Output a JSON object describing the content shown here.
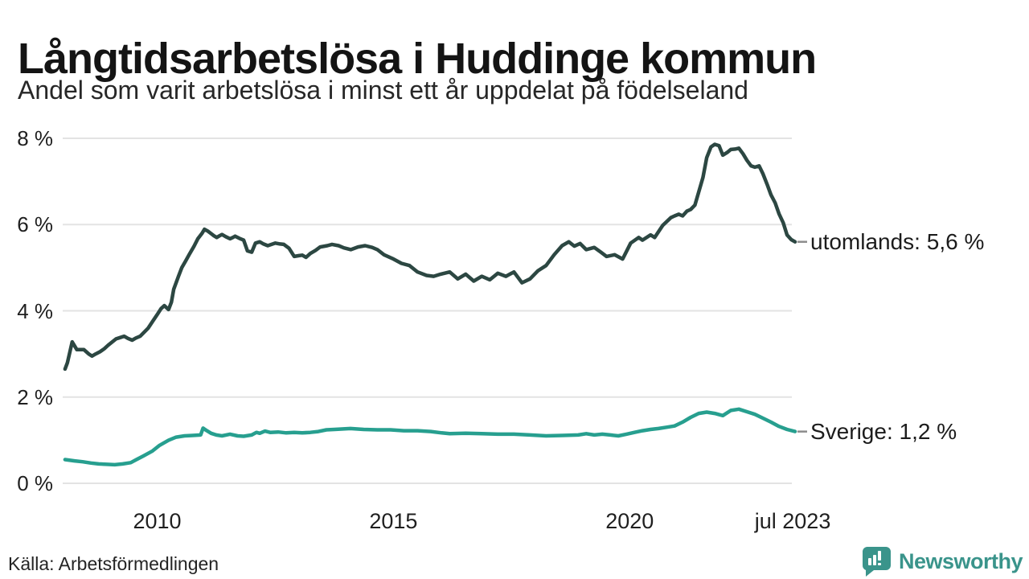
{
  "source_text": "Källa: Arbetsförmedlingen",
  "brand": {
    "name": "Newsworthy",
    "color": "#3a948b"
  },
  "chart_data": {
    "type": "line",
    "title": "Långtidsarbetslösa i Huddinge kommun",
    "subtitle": "Andel som varit arbetslösa i minst ett år uppdelat på födelseland",
    "xlabel": "",
    "ylabel": "",
    "xlim": [
      2008,
      2023.5
    ],
    "ylim": [
      0,
      8
    ],
    "grid": "horizontal",
    "grid_color": "#e3e3e3",
    "end_tick_color": "#8c8c8c",
    "legend_position": "line-end-labels",
    "y_ticks": [
      {
        "v": 8,
        "label": "8 %"
      },
      {
        "v": 6,
        "label": "6 %"
      },
      {
        "v": 4,
        "label": "4 %"
      },
      {
        "v": 2,
        "label": "2 %"
      },
      {
        "v": 0,
        "label": "0 %"
      }
    ],
    "x_ticks": [
      {
        "v": 2010,
        "label": "2010"
      },
      {
        "v": 2015,
        "label": "2015"
      },
      {
        "v": 2020,
        "label": "2020"
      },
      {
        "v": 2023.45,
        "label": "jul 2023"
      }
    ],
    "series": [
      {
        "name": "utomlands",
        "end_label": "utomlands: 5,6 %",
        "last_value_label": "5,6 %",
        "color": "#2c4742",
        "stroke_width": 4.5,
        "points": [
          [
            2008.05,
            2.65
          ],
          [
            2008.1,
            2.8
          ],
          [
            2008.2,
            3.28
          ],
          [
            2008.3,
            3.1
          ],
          [
            2008.45,
            3.1
          ],
          [
            2008.55,
            3.0
          ],
          [
            2008.62,
            2.95
          ],
          [
            2008.7,
            3.0
          ],
          [
            2008.79,
            3.05
          ],
          [
            2008.88,
            3.12
          ],
          [
            2008.96,
            3.2
          ],
          [
            2009.05,
            3.28
          ],
          [
            2009.13,
            3.35
          ],
          [
            2009.22,
            3.38
          ],
          [
            2009.3,
            3.41
          ],
          [
            2009.38,
            3.36
          ],
          [
            2009.47,
            3.32
          ],
          [
            2009.55,
            3.37
          ],
          [
            2009.64,
            3.41
          ],
          [
            2009.72,
            3.5
          ],
          [
            2009.81,
            3.6
          ],
          [
            2009.9,
            3.75
          ],
          [
            2010.0,
            3.91
          ],
          [
            2010.08,
            4.05
          ],
          [
            2010.15,
            4.12
          ],
          [
            2010.24,
            4.03
          ],
          [
            2010.3,
            4.2
          ],
          [
            2010.35,
            4.5
          ],
          [
            2010.45,
            4.8
          ],
          [
            2010.52,
            5.0
          ],
          [
            2010.6,
            5.15
          ],
          [
            2010.69,
            5.33
          ],
          [
            2010.78,
            5.5
          ],
          [
            2010.86,
            5.67
          ],
          [
            2010.95,
            5.8
          ],
          [
            2011.0,
            5.89
          ],
          [
            2011.07,
            5.85
          ],
          [
            2011.14,
            5.79
          ],
          [
            2011.2,
            5.74
          ],
          [
            2011.26,
            5.7
          ],
          [
            2011.32,
            5.74
          ],
          [
            2011.37,
            5.77
          ],
          [
            2011.45,
            5.72
          ],
          [
            2011.54,
            5.67
          ],
          [
            2011.6,
            5.7
          ],
          [
            2011.65,
            5.73
          ],
          [
            2011.74,
            5.68
          ],
          [
            2011.83,
            5.64
          ],
          [
            2011.91,
            5.39
          ],
          [
            2012.0,
            5.36
          ],
          [
            2012.08,
            5.57
          ],
          [
            2012.17,
            5.6
          ],
          [
            2012.25,
            5.55
          ],
          [
            2012.34,
            5.51
          ],
          [
            2012.42,
            5.54
          ],
          [
            2012.5,
            5.57
          ],
          [
            2012.6,
            5.55
          ],
          [
            2012.68,
            5.54
          ],
          [
            2012.79,
            5.45
          ],
          [
            2012.9,
            5.26
          ],
          [
            2013.0,
            5.28
          ],
          [
            2013.07,
            5.29
          ],
          [
            2013.15,
            5.24
          ],
          [
            2013.24,
            5.33
          ],
          [
            2013.35,
            5.4
          ],
          [
            2013.45,
            5.48
          ],
          [
            2013.6,
            5.51
          ],
          [
            2013.7,
            5.54
          ],
          [
            2013.84,
            5.51
          ],
          [
            2013.95,
            5.46
          ],
          [
            2014.1,
            5.42
          ],
          [
            2014.25,
            5.48
          ],
          [
            2014.4,
            5.51
          ],
          [
            2014.55,
            5.47
          ],
          [
            2014.66,
            5.42
          ],
          [
            2014.8,
            5.3
          ],
          [
            2015.0,
            5.2
          ],
          [
            2015.17,
            5.1
          ],
          [
            2015.34,
            5.05
          ],
          [
            2015.51,
            4.9
          ],
          [
            2015.7,
            4.82
          ],
          [
            2015.85,
            4.8
          ],
          [
            2016.0,
            4.85
          ],
          [
            2016.19,
            4.9
          ],
          [
            2016.36,
            4.74
          ],
          [
            2016.53,
            4.85
          ],
          [
            2016.7,
            4.69
          ],
          [
            2016.87,
            4.8
          ],
          [
            2017.04,
            4.72
          ],
          [
            2017.21,
            4.87
          ],
          [
            2017.38,
            4.8
          ],
          [
            2017.55,
            4.9
          ],
          [
            2017.72,
            4.65
          ],
          [
            2017.89,
            4.74
          ],
          [
            2018.06,
            4.93
          ],
          [
            2018.23,
            5.05
          ],
          [
            2018.4,
            5.3
          ],
          [
            2018.57,
            5.51
          ],
          [
            2018.71,
            5.6
          ],
          [
            2018.83,
            5.5
          ],
          [
            2018.95,
            5.56
          ],
          [
            2019.08,
            5.42
          ],
          [
            2019.25,
            5.47
          ],
          [
            2019.39,
            5.36
          ],
          [
            2019.51,
            5.26
          ],
          [
            2019.68,
            5.3
          ],
          [
            2019.85,
            5.2
          ],
          [
            2020.02,
            5.57
          ],
          [
            2020.19,
            5.7
          ],
          [
            2020.27,
            5.64
          ],
          [
            2020.44,
            5.76
          ],
          [
            2020.53,
            5.7
          ],
          [
            2020.7,
            5.98
          ],
          [
            2020.87,
            6.16
          ],
          [
            2020.95,
            6.2
          ],
          [
            2021.04,
            6.24
          ],
          [
            2021.12,
            6.2
          ],
          [
            2021.21,
            6.31
          ],
          [
            2021.29,
            6.35
          ],
          [
            2021.38,
            6.45
          ],
          [
            2021.46,
            6.75
          ],
          [
            2021.55,
            7.09
          ],
          [
            2021.63,
            7.55
          ],
          [
            2021.72,
            7.8
          ],
          [
            2021.8,
            7.86
          ],
          [
            2021.89,
            7.83
          ],
          [
            2021.97,
            7.61
          ],
          [
            2022.06,
            7.67
          ],
          [
            2022.14,
            7.74
          ],
          [
            2022.23,
            7.75
          ],
          [
            2022.31,
            7.77
          ],
          [
            2022.4,
            7.64
          ],
          [
            2022.48,
            7.49
          ],
          [
            2022.57,
            7.36
          ],
          [
            2022.65,
            7.33
          ],
          [
            2022.74,
            7.36
          ],
          [
            2022.82,
            7.18
          ],
          [
            2022.91,
            6.93
          ],
          [
            2022.99,
            6.69
          ],
          [
            2023.08,
            6.5
          ],
          [
            2023.16,
            6.25
          ],
          [
            2023.25,
            6.04
          ],
          [
            2023.33,
            5.76
          ],
          [
            2023.42,
            5.65
          ],
          [
            2023.5,
            5.6
          ]
        ]
      },
      {
        "name": "Sverige",
        "end_label": "Sverige: 1,2 %",
        "last_value_label": "1,2 %",
        "color": "#279f8f",
        "stroke_width": 4.5,
        "points": [
          [
            2008.05,
            0.55
          ],
          [
            2008.25,
            0.52
          ],
          [
            2008.42,
            0.5
          ],
          [
            2008.6,
            0.47
          ],
          [
            2008.76,
            0.45
          ],
          [
            2008.93,
            0.44
          ],
          [
            2009.1,
            0.43
          ],
          [
            2009.27,
            0.45
          ],
          [
            2009.44,
            0.48
          ],
          [
            2009.56,
            0.55
          ],
          [
            2009.7,
            0.63
          ],
          [
            2009.9,
            0.75
          ],
          [
            2010.05,
            0.88
          ],
          [
            2010.24,
            1.0
          ],
          [
            2010.4,
            1.07
          ],
          [
            2010.58,
            1.1
          ],
          [
            2010.75,
            1.11
          ],
          [
            2010.92,
            1.12
          ],
          [
            2010.97,
            1.28
          ],
          [
            2011.05,
            1.22
          ],
          [
            2011.14,
            1.16
          ],
          [
            2011.25,
            1.12
          ],
          [
            2011.37,
            1.1
          ],
          [
            2011.54,
            1.14
          ],
          [
            2011.7,
            1.1
          ],
          [
            2011.83,
            1.09
          ],
          [
            2012.0,
            1.12
          ],
          [
            2012.1,
            1.18
          ],
          [
            2012.17,
            1.16
          ],
          [
            2012.28,
            1.21
          ],
          [
            2012.39,
            1.18
          ],
          [
            2012.56,
            1.19
          ],
          [
            2012.73,
            1.17
          ],
          [
            2012.9,
            1.18
          ],
          [
            2013.07,
            1.17
          ],
          [
            2013.24,
            1.18
          ],
          [
            2013.41,
            1.2
          ],
          [
            2013.58,
            1.24
          ],
          [
            2013.75,
            1.25
          ],
          [
            2014.09,
            1.27
          ],
          [
            2014.37,
            1.25
          ],
          [
            2014.66,
            1.24
          ],
          [
            2014.94,
            1.24
          ],
          [
            2015.22,
            1.22
          ],
          [
            2015.51,
            1.22
          ],
          [
            2015.79,
            1.2
          ],
          [
            2016.02,
            1.17
          ],
          [
            2016.19,
            1.15
          ],
          [
            2016.53,
            1.16
          ],
          [
            2016.87,
            1.15
          ],
          [
            2017.21,
            1.14
          ],
          [
            2017.55,
            1.14
          ],
          [
            2017.89,
            1.12
          ],
          [
            2018.23,
            1.1
          ],
          [
            2018.57,
            1.11
          ],
          [
            2018.91,
            1.12
          ],
          [
            2019.08,
            1.15
          ],
          [
            2019.25,
            1.12
          ],
          [
            2019.42,
            1.14
          ],
          [
            2019.59,
            1.12
          ],
          [
            2019.76,
            1.1
          ],
          [
            2019.93,
            1.14
          ],
          [
            2020.1,
            1.18
          ],
          [
            2020.27,
            1.22
          ],
          [
            2020.44,
            1.25
          ],
          [
            2020.61,
            1.27
          ],
          [
            2020.78,
            1.3
          ],
          [
            2020.95,
            1.33
          ],
          [
            2021.12,
            1.42
          ],
          [
            2021.29,
            1.53
          ],
          [
            2021.46,
            1.62
          ],
          [
            2021.63,
            1.65
          ],
          [
            2021.8,
            1.62
          ],
          [
            2021.97,
            1.57
          ],
          [
            2022.14,
            1.69
          ],
          [
            2022.31,
            1.72
          ],
          [
            2022.48,
            1.66
          ],
          [
            2022.65,
            1.6
          ],
          [
            2022.82,
            1.51
          ],
          [
            2022.99,
            1.42
          ],
          [
            2023.16,
            1.32
          ],
          [
            2023.33,
            1.25
          ],
          [
            2023.5,
            1.2
          ]
        ]
      }
    ]
  }
}
